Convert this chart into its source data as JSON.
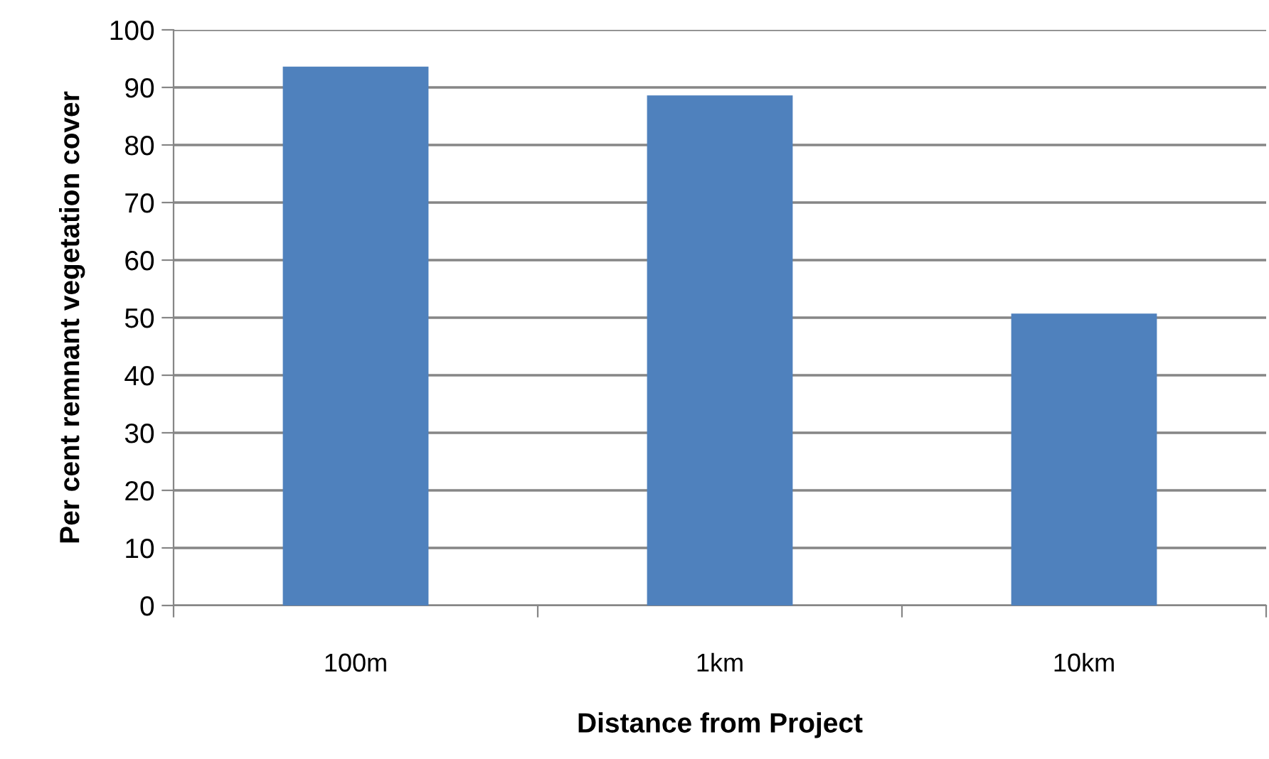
{
  "chart_data": {
    "type": "bar",
    "xlabel": "Distance from Project",
    "ylabel": "Per cent remnant vegetation cover",
    "categories": [
      "100m",
      "1km",
      "10km"
    ],
    "values": [
      93.6,
      88.6,
      50.7
    ],
    "color": "#4f81bd",
    "ylim": [
      0,
      100
    ],
    "yticks": [
      0,
      10,
      20,
      30,
      40,
      50,
      60,
      70,
      80,
      90,
      100
    ],
    "grid": "y"
  }
}
